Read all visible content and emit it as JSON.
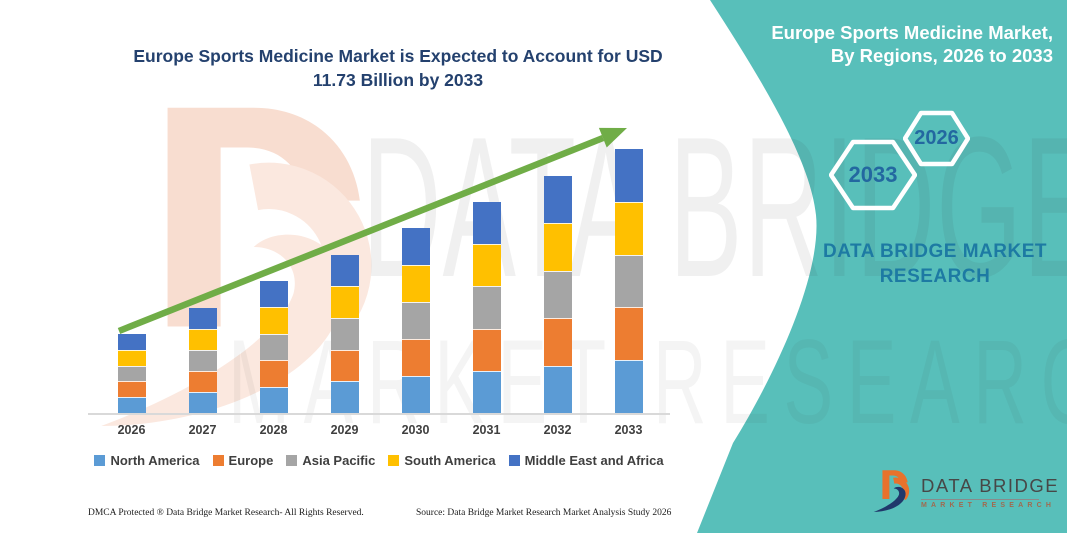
{
  "chart_data": {
    "type": "bar",
    "subtype": "stacked-column",
    "title": "Europe Sports Medicine Market is Expected to Account for USD 11.73 Billion by 2033",
    "unit": "USD Billion",
    "categories": [
      "2026",
      "2027",
      "2028",
      "2029",
      "2030",
      "2031",
      "2032",
      "2033"
    ],
    "series": [
      {
        "name": "North America",
        "color": "#5B9BD5",
        "values": [
          0.704,
          0.938,
          1.174,
          1.408,
          1.642,
          1.876,
          2.112,
          2.346
        ]
      },
      {
        "name": "Europe",
        "color": "#ED7D31",
        "values": [
          0.704,
          0.938,
          1.174,
          1.408,
          1.642,
          1.876,
          2.112,
          2.346
        ]
      },
      {
        "name": "Asia Pacific",
        "color": "#A5A5A5",
        "values": [
          0.704,
          0.938,
          1.174,
          1.408,
          1.642,
          1.876,
          2.112,
          2.346
        ]
      },
      {
        "name": "South America",
        "color": "#FFC000",
        "values": [
          0.704,
          0.938,
          1.174,
          1.408,
          1.642,
          1.876,
          2.112,
          2.346
        ]
      },
      {
        "name": "Middle East and Africa",
        "color": "#4472C4",
        "values": [
          0.704,
          0.938,
          1.174,
          1.408,
          1.642,
          1.876,
          2.112,
          2.346
        ]
      }
    ],
    "totals_estimated": [
      3.52,
      4.69,
      5.87,
      7.04,
      8.21,
      9.38,
      10.56,
      11.73
    ],
    "ylim": [
      0,
      11.73
    ],
    "xlabel": "",
    "ylabel": "",
    "grid": false,
    "legend_position": "bottom",
    "annotation": "upward trend arrow from 2026 to 2033"
  },
  "right_panel": {
    "heading": "Europe Sports Medicine Market, By Regions, 2026 to 2033",
    "hexagons": [
      {
        "label": "2033"
      },
      {
        "label": "2026"
      }
    ],
    "brand_text": "DATA BRIDGE MARKET RESEARCH"
  },
  "watermark": {
    "line1": "DATA BRIDGE",
    "line2": "MARKET RESEARCH"
  },
  "footer_logo": {
    "name": "DATA BRIDGE",
    "tagline": "MARKET RESEARCH"
  },
  "disclaimer": {
    "dmca": "DMCA Protected ® Data Bridge Market Research-  All Rights Reserved.",
    "source": "Source: Data Bridge Market Research  Market Analysis Study 2026"
  },
  "colors": {
    "teal_panel": "#58bfba",
    "title_text": "#24416e",
    "trend_arrow": "#70AD47",
    "hexagon_label": "#2368a0",
    "brand_text": "#1d7aa3",
    "axis_line": "#d9d9d9",
    "tick_text": "#3f3f3f"
  }
}
